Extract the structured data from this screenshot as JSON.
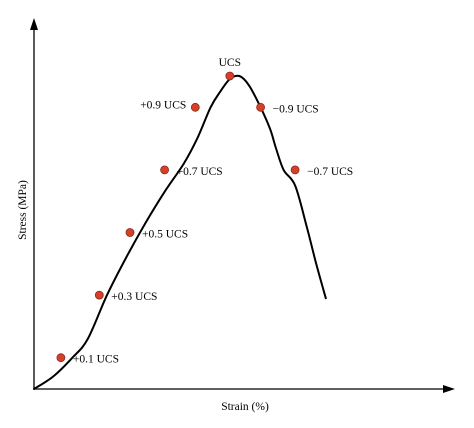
{
  "chart_data": {
    "type": "line",
    "xlabel": "Strain (%)",
    "ylabel": "Stress (MPa)",
    "grid": false,
    "legend": "none",
    "curve_color": "#000000",
    "marker_color": "#d6402a",
    "x": [
      0.0,
      0.05,
      0.1,
      0.14,
      0.19,
      0.24,
      0.29,
      0.34,
      0.39,
      0.425,
      0.46,
      0.485,
      0.51,
      0.535,
      0.56,
      0.59,
      0.615,
      0.63,
      0.65,
      0.68,
      0.71,
      0.735,
      0.76
    ],
    "y": [
      0.0,
      0.04,
      0.1,
      0.16,
      0.3,
      0.42,
      0.53,
      0.63,
      0.72,
      0.8,
      0.9,
      0.95,
      0.99,
      1.0,
      0.97,
      0.9,
      0.83,
      0.77,
      0.7,
      0.65,
      0.52,
      0.4,
      0.29
    ],
    "points": [
      {
        "label": "+0.1 UCS",
        "x": 0.07,
        "y": 0.1
      },
      {
        "label": "+0.3 UCS",
        "x": 0.17,
        "y": 0.3
      },
      {
        "label": "+0.5 UCS",
        "x": 0.25,
        "y": 0.5
      },
      {
        "label": "+0.7 UCS",
        "x": 0.34,
        "y": 0.7
      },
      {
        "label": "+0.9 UCS",
        "x": 0.42,
        "y": 0.9
      },
      {
        "label": "UCS",
        "x": 0.51,
        "y": 1.0
      },
      {
        "label": "−0.9 UCS",
        "x": 0.59,
        "y": 0.9
      },
      {
        "label": "−0.7 UCS",
        "x": 0.68,
        "y": 0.7
      }
    ]
  }
}
